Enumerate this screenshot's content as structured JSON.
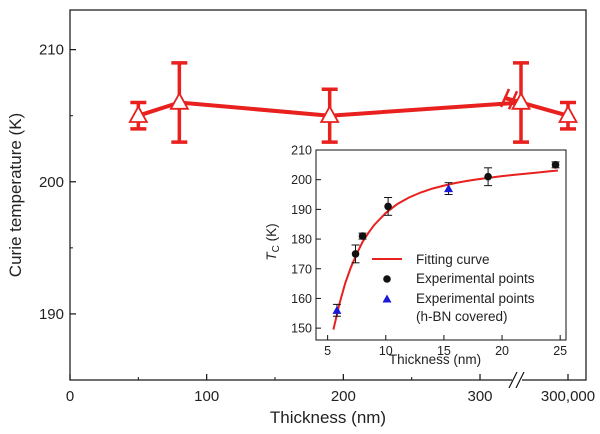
{
  "chart_data": [
    {
      "type": "line",
      "xlabel": "Thickness (nm)",
      "ylabel": "Curie temperature (K)",
      "x_ticks": [
        "0",
        "100",
        "200",
        "300",
        "300,000"
      ],
      "y_ticks": [
        "190",
        "200",
        "210"
      ],
      "x_axis_break": true,
      "ylim": [
        185,
        213
      ],
      "colors": {
        "series": "#e8201e"
      },
      "series": [
        {
          "x": [
            50,
            80,
            190,
            330,
            300000
          ],
          "y": [
            205,
            206,
            205,
            206,
            205
          ],
          "y_err": [
            1,
            3,
            2,
            3,
            1
          ],
          "marker": "open-triangle"
        }
      ]
    },
    {
      "type": "scatter",
      "xlabel": "Thickness (nm)",
      "ylabel_main": "T",
      "ylabel_sub": "C",
      "ylabel_unit": " (K)",
      "x_ticks": [
        "5",
        "10",
        "15",
        "20",
        "25"
      ],
      "y_ticks": [
        "150",
        "160",
        "170",
        "180",
        "190",
        "200",
        "210"
      ],
      "xlim": [
        4,
        25.5
      ],
      "ylim": [
        146,
        210
      ],
      "legend_position": "bottom-right",
      "legend": [
        {
          "label": "Fitting curve",
          "kind": "line",
          "color": "#e8201e"
        },
        {
          "label": "Experimental points",
          "kind": "circle",
          "color": "#111111"
        },
        {
          "label": "Experimental points",
          "label2": "(h-BN covered)",
          "kind": "triangle",
          "color": "#1a1ad6"
        }
      ],
      "series": [
        {
          "name": "Fitting curve",
          "type": "line",
          "x": [
            5.5,
            6,
            6.5,
            7,
            7.5,
            8,
            8.5,
            9,
            10,
            11,
            12,
            13,
            14,
            15,
            16,
            17,
            18,
            19,
            20,
            21,
            22,
            23,
            24,
            24.8
          ],
          "y": [
            149.5,
            158,
            165,
            170.5,
            175,
            179,
            182,
            184.7,
            188.8,
            191.8,
            194,
            195.7,
            197,
            198,
            198.9,
            199.6,
            200.2,
            200.7,
            201.2,
            201.6,
            202,
            202.4,
            202.8,
            203.1
          ]
        },
        {
          "name": "Experimental points",
          "type": "scatter",
          "marker": "circle",
          "x": [
            7.4,
            8,
            10.2,
            18.8,
            24.6
          ],
          "y": [
            175,
            181,
            191,
            201,
            205
          ],
          "y_err": [
            3,
            1,
            3,
            3,
            1
          ]
        },
        {
          "name": "Experimental points (h-BN covered)",
          "type": "scatter",
          "marker": "triangle",
          "x": [
            5.8,
            15.4
          ],
          "y": [
            156,
            197
          ],
          "y_err": [
            2,
            2
          ]
        }
      ]
    }
  ]
}
